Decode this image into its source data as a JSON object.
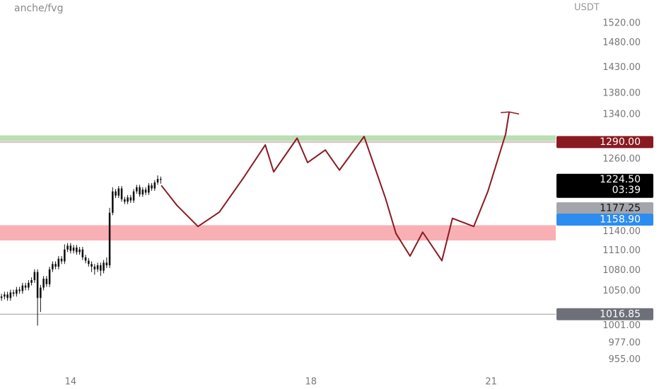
{
  "chart_data": {
    "type": "candlestick",
    "title": "anche/fvg",
    "y_axis_label": "USDT",
    "log_scale": true,
    "ylim": [
      917,
      1570
    ],
    "yticks": [
      {
        "value": 1520,
        "label": "1520.00"
      },
      {
        "value": 1480,
        "label": "1480.00"
      },
      {
        "value": 1430,
        "label": "1430.00"
      },
      {
        "value": 1380,
        "label": "1380.00"
      },
      {
        "value": 1340,
        "label": "1340.00"
      },
      {
        "value": 1260,
        "label": "1260.00"
      },
      {
        "value": 1140,
        "label": "1140.00"
      },
      {
        "value": 1110,
        "label": "1110.00"
      },
      {
        "value": 1080,
        "label": "1080.00"
      },
      {
        "value": 1050,
        "label": "1050.00"
      },
      {
        "value": 1001,
        "label": "1001.00"
      },
      {
        "value": 977,
        "label": "977.00"
      },
      {
        "value": 955,
        "label": "955.00"
      }
    ],
    "xlim": [
      -0.5,
      184.5
    ],
    "xticks": [
      {
        "value": 23,
        "label": "14"
      },
      {
        "value": 103,
        "label": "18"
      },
      {
        "value": 163,
        "label": "21"
      }
    ],
    "candle_color": "#111111",
    "candles": {
      "open": [
        1040,
        1042,
        1045,
        1040,
        1048,
        1046,
        1052,
        1050,
        1058,
        1055,
        1062,
        1066,
        1078,
        1040,
        1055,
        1068,
        1060,
        1082,
        1090,
        1086,
        1098,
        1094,
        1112,
        1118,
        1110,
        1115,
        1108,
        1112,
        1100,
        1095,
        1090,
        1086,
        1082,
        1088,
        1080,
        1092,
        1088,
        1170,
        1205,
        1198,
        1210,
        1192,
        1188,
        1195,
        1190,
        1205,
        1212,
        1200,
        1208,
        1203,
        1215,
        1210,
        1220,
        1226
      ],
      "high": [
        1046,
        1049,
        1049,
        1052,
        1052,
        1056,
        1056,
        1062,
        1062,
        1066,
        1070,
        1082,
        1082,
        1059,
        1072,
        1072,
        1086,
        1094,
        1094,
        1102,
        1102,
        1120,
        1122,
        1122,
        1119,
        1119,
        1116,
        1116,
        1104,
        1099,
        1094,
        1090,
        1092,
        1092,
        1096,
        1100,
        1178,
        1212,
        1209,
        1214,
        1214,
        1196,
        1199,
        1199,
        1209,
        1216,
        1216,
        1212,
        1212,
        1219,
        1219,
        1224,
        1232,
        1230
      ],
      "low": [
        1036,
        1038,
        1036,
        1036,
        1042,
        1042,
        1046,
        1046,
        1051,
        1051,
        1058,
        1062,
        1001,
        1020,
        1051,
        1056,
        1056,
        1078,
        1082,
        1082,
        1090,
        1090,
        1108,
        1106,
        1106,
        1104,
        1104,
        1096,
        1091,
        1086,
        1078,
        1074,
        1078,
        1072,
        1076,
        1084,
        1084,
        1166,
        1194,
        1194,
        1188,
        1184,
        1184,
        1186,
        1186,
        1201,
        1196,
        1196,
        1199,
        1199,
        1206,
        1206,
        1216,
        1218
      ],
      "close": [
        1042,
        1045,
        1040,
        1048,
        1046,
        1052,
        1050,
        1058,
        1055,
        1062,
        1066,
        1078,
        1040,
        1055,
        1068,
        1060,
        1082,
        1090,
        1086,
        1098,
        1094,
        1112,
        1118,
        1110,
        1115,
        1108,
        1112,
        1100,
        1095,
        1090,
        1086,
        1082,
        1088,
        1080,
        1092,
        1088,
        1170,
        1205,
        1198,
        1210,
        1192,
        1188,
        1195,
        1190,
        1205,
        1212,
        1200,
        1208,
        1203,
        1215,
        1210,
        1220,
        1226,
        1224.5
      ]
    },
    "zones": [
      {
        "low": 1292,
        "high": 1302,
        "color": "#b9dfb4"
      },
      {
        "low": 1126,
        "high": 1150,
        "color": "#f9b0b4"
      }
    ],
    "lines": [
      {
        "value": 1290,
        "color": "#c8787c"
      },
      {
        "value": 1016.85,
        "color": "#9a9ca4"
      }
    ],
    "projection": {
      "color": "#8a1a22",
      "x": [
        53.2,
        58.4,
        65.4,
        72.5,
        80.7,
        87.8,
        90.6,
        98.4,
        101.9,
        107.8,
        112.5,
        120.7,
        127.8,
        131.3,
        136,
        140.2,
        146.6,
        150.1,
        157.2,
        161.9,
        167.8,
        169
      ],
      "y": [
        1215,
        1182,
        1148,
        1171,
        1229,
        1285,
        1238,
        1297,
        1254,
        1276,
        1241,
        1300,
        1194,
        1137,
        1102,
        1139,
        1095,
        1161,
        1148,
        1205,
        1304,
        1345
      ]
    },
    "price_labels": [
      {
        "value": 1290,
        "label": "1290.00",
        "color": "#8a1a22",
        "text_color": "#ffffff"
      },
      {
        "value": 1224.5,
        "label": "1224.50",
        "sublabel": "03:39",
        "color": "#000000",
        "text_color": "#ffffff"
      },
      {
        "value": 1177.25,
        "label": "1177.25",
        "color": "#a3a5ab",
        "text_color": "#111111"
      },
      {
        "value": 1158.9,
        "label": "1158.90",
        "color": "#2d8cf0",
        "text_color": "#ffffff"
      },
      {
        "value": 1016.85,
        "label": "1016.85",
        "color": "#6e7079",
        "text_color": "#ffffff"
      }
    ]
  }
}
